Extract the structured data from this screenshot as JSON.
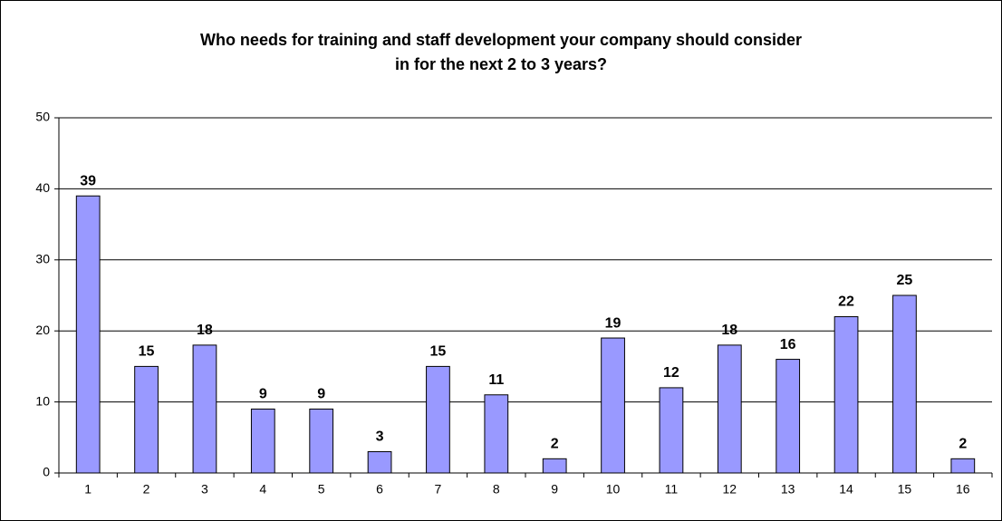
{
  "chart_data": {
    "type": "bar",
    "title": [
      "Who needs for training and staff development your company should consider",
      "in for the next 2 to 3 years?"
    ],
    "categories": [
      "1",
      "2",
      "3",
      "4",
      "5",
      "6",
      "7",
      "8",
      "9",
      "10",
      "11",
      "12",
      "13",
      "14",
      "15",
      "16"
    ],
    "values": [
      39,
      15,
      18,
      9,
      9,
      3,
      15,
      11,
      2,
      19,
      12,
      18,
      16,
      22,
      25,
      2
    ],
    "color": "#9999ff",
    "ylim": [
      0,
      50
    ],
    "yticks": [
      0,
      10,
      20,
      30,
      40,
      50
    ],
    "grid": true
  }
}
